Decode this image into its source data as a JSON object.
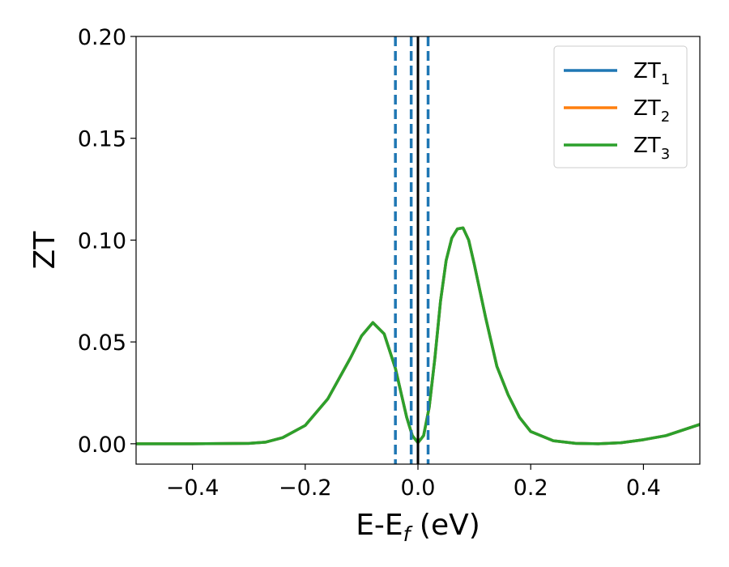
{
  "chart_data": {
    "type": "line",
    "xlabel_main": "E-E",
    "xlabel_sub": "f",
    "xlabel_unit": " (eV)",
    "ylabel": "ZT",
    "xlim": [
      -0.5,
      0.5
    ],
    "ylim": [
      -0.01,
      0.2
    ],
    "xticks": [
      {
        "value": -0.4,
        "label": "−0.4"
      },
      {
        "value": -0.2,
        "label": "−0.2"
      },
      {
        "value": 0.0,
        "label": "0.0"
      },
      {
        "value": 0.2,
        "label": "0.2"
      },
      {
        "value": 0.4,
        "label": "0.4"
      }
    ],
    "yticks": [
      {
        "value": 0.0,
        "label": "0.00"
      },
      {
        "value": 0.05,
        "label": "0.05"
      },
      {
        "value": 0.1,
        "label": "0.10"
      },
      {
        "value": 0.15,
        "label": "0.15"
      },
      {
        "value": 0.2,
        "label": "0.20"
      }
    ],
    "grid": false,
    "legend_position": "top-right",
    "x": [
      -0.5,
      -0.4,
      -0.3,
      -0.27,
      -0.24,
      -0.2,
      -0.16,
      -0.12,
      -0.1,
      -0.08,
      -0.06,
      -0.04,
      -0.03,
      -0.02,
      -0.01,
      0.0,
      0.01,
      0.02,
      0.03,
      0.04,
      0.05,
      0.06,
      0.07,
      0.08,
      0.09,
      0.1,
      0.12,
      0.14,
      0.16,
      0.18,
      0.2,
      0.24,
      0.28,
      0.32,
      0.36,
      0.4,
      0.44,
      0.5
    ],
    "series": [
      {
        "name": "ZT",
        "sub": "1",
        "color": "#1f77b4",
        "values": [
          0.0,
          0.0,
          0.0002,
          0.0008,
          0.003,
          0.009,
          0.022,
          0.042,
          0.053,
          0.0595,
          0.054,
          0.037,
          0.025,
          0.013,
          0.004,
          0.0005,
          0.004,
          0.018,
          0.042,
          0.07,
          0.09,
          0.101,
          0.1055,
          0.106,
          0.1,
          0.088,
          0.062,
          0.038,
          0.024,
          0.013,
          0.006,
          0.0015,
          0.0002,
          0.0,
          0.0005,
          0.002,
          0.004,
          0.0095
        ]
      },
      {
        "name": "ZT",
        "sub": "2",
        "color": "#ff7f0e",
        "values": [
          0.0,
          0.0,
          0.0002,
          0.0008,
          0.003,
          0.009,
          0.022,
          0.042,
          0.053,
          0.0595,
          0.054,
          0.037,
          0.025,
          0.013,
          0.004,
          0.0005,
          0.004,
          0.018,
          0.042,
          0.07,
          0.09,
          0.101,
          0.1055,
          0.106,
          0.1,
          0.088,
          0.062,
          0.038,
          0.024,
          0.013,
          0.006,
          0.0015,
          0.0002,
          0.0,
          0.0005,
          0.002,
          0.004,
          0.0095
        ]
      },
      {
        "name": "ZT",
        "sub": "3",
        "color": "#2ca02c",
        "values": [
          0.0,
          0.0,
          0.0002,
          0.0008,
          0.003,
          0.009,
          0.022,
          0.042,
          0.053,
          0.0595,
          0.054,
          0.037,
          0.025,
          0.013,
          0.004,
          0.0005,
          0.004,
          0.018,
          0.042,
          0.07,
          0.09,
          0.101,
          0.1055,
          0.106,
          0.1,
          0.088,
          0.062,
          0.038,
          0.024,
          0.013,
          0.006,
          0.0015,
          0.0002,
          0.0,
          0.0005,
          0.002,
          0.004,
          0.0095
        ]
      }
    ],
    "vertical_lines": [
      {
        "x": -0.04,
        "style": "dashed",
        "color": "#1f77b4"
      },
      {
        "x": -0.012,
        "style": "dashed",
        "color": "#1f77b4"
      },
      {
        "x": 0.0,
        "style": "solid",
        "color": "#000000"
      },
      {
        "x": 0.018,
        "style": "dashed",
        "color": "#1f77b4"
      }
    ]
  }
}
